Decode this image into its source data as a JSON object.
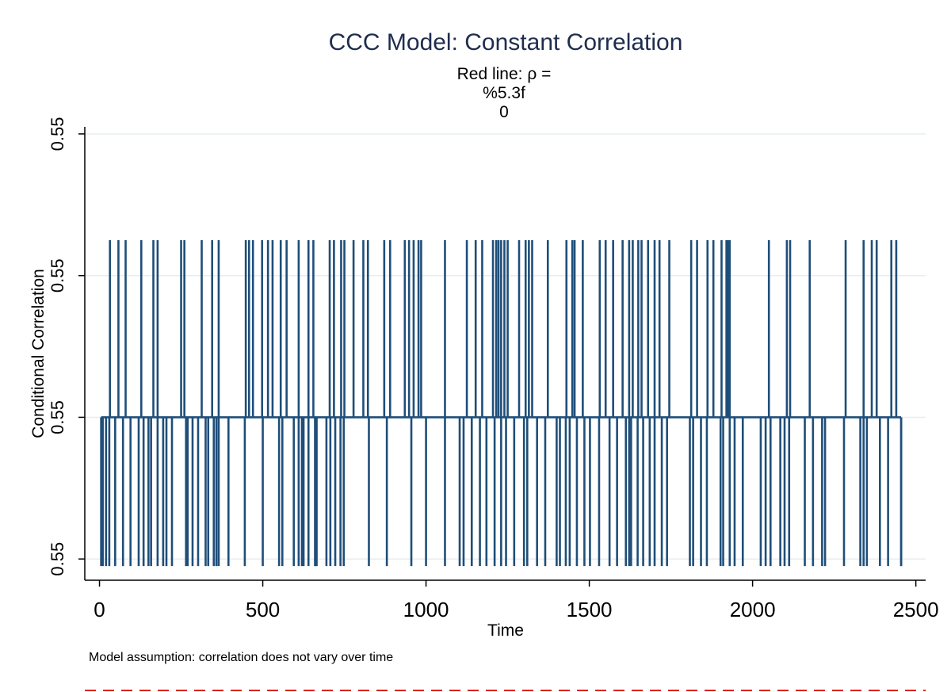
{
  "chart_data": {
    "type": "line",
    "title": "CCC Model: Constant Correlation",
    "subtitle_lines": [
      "Red line: ρ =",
      "%5.3f",
      "0"
    ],
    "xlabel": "Time",
    "ylabel": "Conditional Correlation",
    "note": "Model assumption: correlation does not vary over time",
    "xlim": [
      -45,
      2530
    ],
    "ylim": [
      0,
      3.2
    ],
    "x_ticks": [
      0,
      500,
      1000,
      1500,
      2000,
      2500
    ],
    "x_tick_labels": [
      "0",
      "500",
      "1000",
      "1500",
      "2000",
      "2500"
    ],
    "y_ticks": [
      0.15,
      1.15,
      2.15,
      3.15
    ],
    "y_tick_labels": [
      "0.55",
      "0.55",
      "0.55",
      "0.55"
    ],
    "grid": true,
    "legend": "none",
    "series_color": "#1f4e79",
    "reference_line_color": "#e3231b",
    "series": [
      {
        "base_value": 1.15,
        "x_start": 5,
        "x_end": 2455,
        "up_value": 2.4,
        "down_value": 0.1,
        "spikes_up": [
          32,
          58,
          80,
          128,
          165,
          178,
          250,
          260,
          313,
          345,
          365,
          448,
          458,
          470,
          498,
          516,
          530,
          555,
          573,
          610,
          640,
          655,
          705,
          718,
          740,
          750,
          778,
          808,
          822,
          872,
          890,
          935,
          948,
          962,
          977,
          985,
          1058,
          1125,
          1152,
          1172,
          1205,
          1215,
          1222,
          1230,
          1240,
          1250,
          1285,
          1305,
          1315,
          1325,
          1373,
          1430,
          1448,
          1455,
          1480,
          1532,
          1550,
          1573,
          1602,
          1622,
          1633,
          1650,
          1660,
          1680,
          1700,
          1715,
          1745,
          1812,
          1830,
          1862,
          1880,
          1905,
          1920,
          1925,
          1930,
          2050,
          2105,
          2115,
          2175,
          2285,
          2340,
          2365,
          2380,
          2425,
          2440
        ],
        "spikes_down": [
          10,
          20,
          30,
          48,
          72,
          95,
          120,
          135,
          150,
          158,
          178,
          195,
          205,
          222,
          265,
          270,
          285,
          302,
          325,
          333,
          350,
          358,
          365,
          395,
          445,
          500,
          550,
          560,
          595,
          610,
          620,
          625,
          640,
          660,
          662,
          665,
          695,
          707,
          722,
          738,
          748,
          825,
          880,
          955,
          1000,
          1058,
          1103,
          1115,
          1140,
          1165,
          1185,
          1210,
          1230,
          1245,
          1270,
          1300,
          1310,
          1340,
          1365,
          1400,
          1410,
          1428,
          1440,
          1462,
          1485,
          1502,
          1530,
          1562,
          1585,
          1612,
          1622,
          1628,
          1648,
          1665,
          1685,
          1700,
          1722,
          1738,
          1808,
          1818,
          1842,
          1860,
          1902,
          1910,
          1930,
          1945,
          1970,
          2025,
          2040,
          2055,
          2085,
          2098,
          2112,
          2160,
          2185,
          2213,
          2222,
          2280,
          2330,
          2340,
          2350,
          2390,
          2415,
          2455
        ]
      }
    ]
  }
}
